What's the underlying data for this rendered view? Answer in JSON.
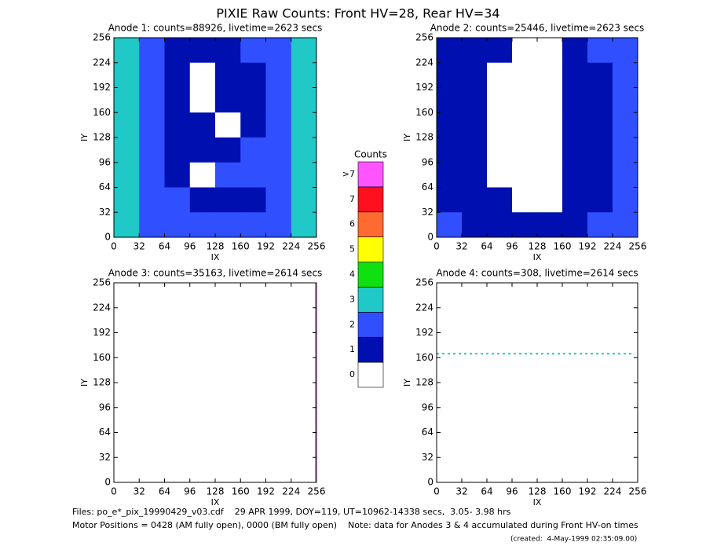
{
  "title": "PIXIE Raw Counts:  Front HV=28, Rear HV=34",
  "colorbar": {
    "title": "Counts",
    "categories": [
      "0",
      "1",
      "2",
      "3",
      "4",
      "5",
      "6",
      "7",
      ">7"
    ],
    "colors": [
      "#ffffff",
      "#0010b0",
      "#3050ff",
      "#20c8c8",
      "#10e010",
      "#ffff00",
      "#ff6a30",
      "#ff1020",
      "#ff55ff"
    ]
  },
  "footer": [
    "Files: po_e*_pix_19990429_v03.cdf    29 APR 1999, DOY=119, UT=10962-14338 secs,  3.05- 3.98 hrs",
    "Motor Positions = 0428 (AM fully open), 0000 (BM fully open)    Note: data for Anodes 3 & 4 accumulated during Front HV-on times",
    "(created:  4-May-1999 02:35:09.00)"
  ],
  "chart_data": [
    {
      "type": "heatmap",
      "title": "Anode 1: counts=88926, livetime=2623 secs",
      "xlabel": "IX",
      "ylabel": "IY",
      "xlim": [
        0,
        256
      ],
      "ylim": [
        0,
        256
      ],
      "xticks": [
        0,
        32,
        64,
        96,
        128,
        160,
        192,
        224,
        256
      ],
      "yticks": [
        0,
        32,
        64,
        96,
        128,
        160,
        192,
        224,
        256
      ],
      "grid_values": [
        [
          3,
          2,
          1,
          1,
          1,
          2,
          2,
          3
        ],
        [
          3,
          2,
          1,
          0,
          1,
          1,
          2,
          3
        ],
        [
          3,
          2,
          1,
          0,
          1,
          1,
          2,
          3
        ],
        [
          3,
          2,
          1,
          1,
          0,
          1,
          2,
          3
        ],
        [
          3,
          2,
          1,
          1,
          1,
          2,
          2,
          3
        ],
        [
          3,
          2,
          1,
          0,
          2,
          2,
          2,
          3
        ],
        [
          3,
          2,
          2,
          1,
          1,
          1,
          2,
          3
        ],
        [
          3,
          2,
          2,
          2,
          2,
          2,
          2,
          3
        ]
      ]
    },
    {
      "type": "heatmap",
      "title": "Anode 2: counts=25446, livetime=2623 secs",
      "xlabel": "IX",
      "ylabel": "IY",
      "xlim": [
        0,
        256
      ],
      "ylim": [
        0,
        256
      ],
      "xticks": [
        0,
        32,
        64,
        96,
        128,
        160,
        192,
        224,
        256
      ],
      "yticks": [
        0,
        32,
        64,
        96,
        128,
        160,
        192,
        224,
        256
      ],
      "grid_values": [
        [
          1,
          1,
          1,
          0,
          0,
          1,
          2,
          2
        ],
        [
          1,
          1,
          0,
          0,
          0,
          1,
          1,
          2
        ],
        [
          1,
          1,
          0,
          0,
          0,
          1,
          1,
          2
        ],
        [
          1,
          1,
          0,
          0,
          0,
          1,
          1,
          2
        ],
        [
          1,
          1,
          0,
          0,
          0,
          1,
          1,
          2
        ],
        [
          1,
          1,
          0,
          0,
          0,
          1,
          1,
          2
        ],
        [
          1,
          1,
          1,
          0,
          0,
          1,
          1,
          2
        ],
        [
          2,
          1,
          1,
          1,
          1,
          1,
          2,
          2
        ]
      ]
    },
    {
      "type": "heatmap",
      "title": "Anode 3: counts=35163, livetime=2614 secs",
      "xlabel": "IX",
      "ylabel": "IY",
      "xlim": [
        0,
        256
      ],
      "ylim": [
        0,
        256
      ],
      "xticks": [
        0,
        32,
        64,
        96,
        128,
        160,
        192,
        224,
        256
      ],
      "yticks": [
        0,
        32,
        64,
        96,
        128,
        160,
        192,
        224,
        256
      ],
      "hot_column": {
        "x": 255,
        "level": 8
      }
    },
    {
      "type": "heatmap",
      "title": "Anode 4: counts=308, livetime=2614 secs",
      "xlabel": "IX",
      "ylabel": "IY",
      "xlim": [
        0,
        256
      ],
      "ylim": [
        0,
        256
      ],
      "xticks": [
        0,
        32,
        64,
        96,
        128,
        160,
        192,
        224,
        256
      ],
      "yticks": [
        0,
        32,
        64,
        96,
        128,
        160,
        192,
        224,
        256
      ],
      "hot_row": {
        "y": 165,
        "x_range": [
          0,
          250
        ],
        "level": 3
      }
    }
  ]
}
